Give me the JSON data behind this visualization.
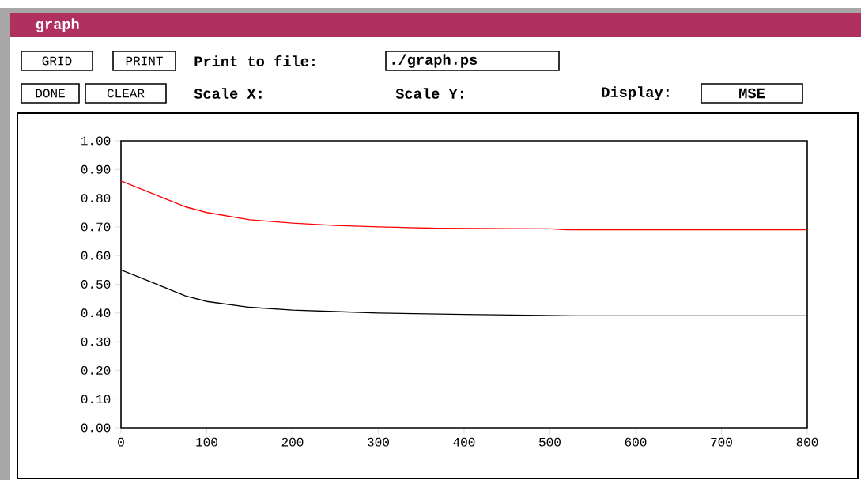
{
  "chart_data": {
    "type": "line",
    "title": "graph",
    "annotations": [
      "GRID",
      "PRINT",
      "Print to file:",
      "./graph.ps",
      "DONE",
      "CLEAR",
      "Scale X:",
      "Scale Y:",
      "Display:",
      "MSE"
    ],
    "series": [
      {
        "color": "#ff0000",
        "x": [
          0,
          25,
          50,
          75,
          100,
          150,
          200,
          250,
          300,
          370,
          500,
          520,
          800
        ],
        "values": [
          0.86,
          0.83,
          0.8,
          0.77,
          0.75,
          0.725,
          0.713,
          0.705,
          0.7,
          0.695,
          0.693,
          0.69,
          0.69
        ]
      },
      {
        "color": "#000000",
        "x": [
          0,
          25,
          50,
          75,
          100,
          150,
          200,
          250,
          300,
          400,
          530,
          800
        ],
        "values": [
          0.55,
          0.52,
          0.49,
          0.46,
          0.44,
          0.42,
          0.41,
          0.405,
          0.4,
          0.395,
          0.39,
          0.39
        ]
      }
    ],
    "xlim": [
      0,
      800
    ],
    "ylim": [
      0,
      1
    ],
    "xticks": [
      0,
      100,
      200,
      300,
      400,
      500,
      600,
      700,
      800
    ],
    "yticks": [
      {
        "value": 0,
        "label": "0.00"
      },
      {
        "value": 0.1,
        "label": "0.10"
      },
      {
        "value": 0.2,
        "label": "0.20"
      },
      {
        "value": 0.3,
        "label": "0.30"
      },
      {
        "value": 0.4,
        "label": "0.40"
      },
      {
        "value": 0.5,
        "label": "0.50"
      },
      {
        "value": 0.6,
        "label": "0.60"
      },
      {
        "value": 0.7,
        "label": "0.70"
      },
      {
        "value": 0.8,
        "label": "0.80"
      },
      {
        "value": 0.9,
        "label": "0.90"
      },
      {
        "value": 1,
        "label": "1.00"
      }
    ],
    "grid": false,
    "marker": "none",
    "line_style": "solid"
  }
}
